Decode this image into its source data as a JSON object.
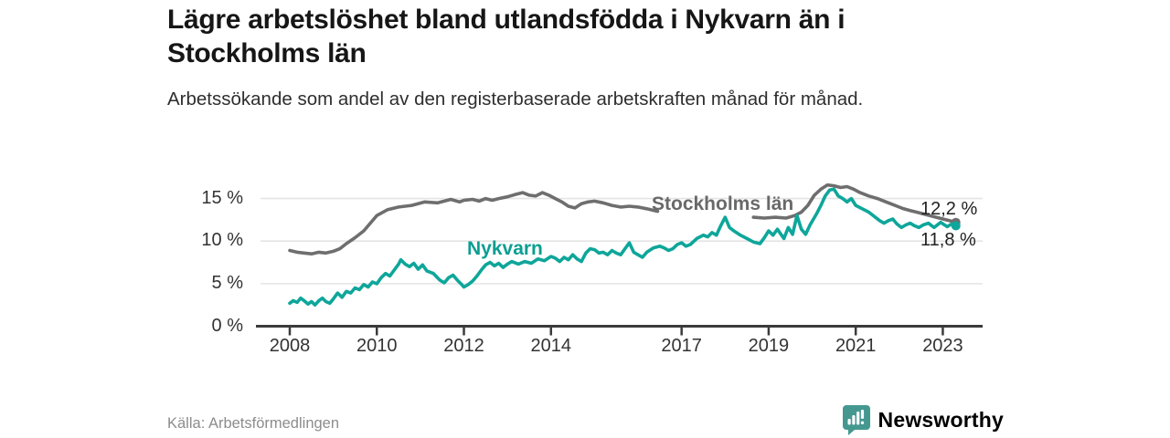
{
  "header": {
    "title": "Lägre arbetslöshet bland utlandsfödda i Nykvarn än i Stockholms län",
    "subtitle": "Arbetssökande som andel av den registerbaserade arbetskraften månad för månad."
  },
  "footer": {
    "source": "Källa: Arbetsförmedlingen",
    "brand": "Newsworthy"
  },
  "colors": {
    "stockholm_line": "#6e6e6e",
    "stockholm_label": "#696969",
    "nykvarn_line": "#0ea69a",
    "nykvarn_label": "#0b9e92",
    "axis": "#3b3b3b",
    "gridline": "#e4e4e4",
    "logo_icon": "#459890",
    "logo_text": "#2f837e"
  },
  "chart_data": {
    "type": "line",
    "title": "Lägre arbetslöshet bland utlandsfödda i Nykvarn än i Stockholms län",
    "subtitle": "Arbetssökande som andel av den registerbaserade arbetskraften månad för månad.",
    "unit": "%",
    "grid": "horizontal-only",
    "legend_position": "inline-labels",
    "x_axis": {
      "ticks": [
        2008,
        2010,
        2012,
        2014,
        2017,
        2019,
        2021,
        2023
      ],
      "range": [
        2007.3,
        2023.9
      ]
    },
    "y_axis": {
      "tick_values": [
        0,
        5,
        10,
        15
      ],
      "tick_labels": [
        "0 %",
        "5 %",
        "10 %",
        "15 %"
      ],
      "range": [
        0,
        17.8
      ]
    },
    "series": [
      {
        "name": "Stockholms län",
        "color": "#6e6e6e",
        "end_label": "12,2 %",
        "end_value": 12.2,
        "segments": [
          [
            [
              2008.0,
              8.9
            ],
            [
              2008.17,
              8.7
            ],
            [
              2008.33,
              8.6
            ],
            [
              2008.5,
              8.5
            ],
            [
              2008.67,
              8.7
            ],
            [
              2008.83,
              8.6
            ],
            [
              2009.0,
              8.8
            ],
            [
              2009.15,
              9.1
            ],
            [
              2009.3,
              9.7
            ],
            [
              2009.5,
              10.4
            ],
            [
              2009.7,
              11.2
            ],
            [
              2009.85,
              12.1
            ],
            [
              2010.0,
              13.0
            ],
            [
              2010.25,
              13.7
            ],
            [
              2010.5,
              14.0
            ],
            [
              2010.8,
              14.2
            ],
            [
              2011.1,
              14.6
            ],
            [
              2011.4,
              14.5
            ],
            [
              2011.7,
              14.9
            ],
            [
              2011.9,
              14.6
            ],
            [
              2012.0,
              14.8
            ],
            [
              2012.2,
              14.9
            ],
            [
              2012.35,
              14.7
            ],
            [
              2012.5,
              15.0
            ],
            [
              2012.65,
              14.8
            ],
            [
              2012.8,
              15.0
            ],
            [
              2013.0,
              15.2
            ],
            [
              2013.2,
              15.5
            ],
            [
              2013.35,
              15.7
            ],
            [
              2013.5,
              15.4
            ],
            [
              2013.65,
              15.3
            ],
            [
              2013.8,
              15.7
            ],
            [
              2013.95,
              15.4
            ],
            [
              2014.1,
              15.0
            ],
            [
              2014.25,
              14.6
            ],
            [
              2014.4,
              14.1
            ],
            [
              2014.55,
              13.9
            ],
            [
              2014.7,
              14.4
            ],
            [
              2014.85,
              14.6
            ],
            [
              2015.0,
              14.7
            ],
            [
              2015.2,
              14.5
            ],
            [
              2015.4,
              14.2
            ],
            [
              2015.6,
              14.0
            ],
            [
              2015.8,
              14.1
            ],
            [
              2016.0,
              14.0
            ],
            [
              2016.2,
              13.8
            ],
            [
              2016.45,
              13.5
            ]
          ],
          [
            [
              2018.65,
              12.8
            ],
            [
              2018.9,
              12.7
            ],
            [
              2019.15,
              12.8
            ],
            [
              2019.4,
              12.7
            ],
            [
              2019.6,
              13.0
            ],
            [
              2019.75,
              13.4
            ],
            [
              2019.9,
              14.2
            ],
            [
              2020.05,
              15.4
            ],
            [
              2020.2,
              16.1
            ],
            [
              2020.35,
              16.6
            ],
            [
              2020.5,
              16.5
            ],
            [
              2020.65,
              16.3
            ],
            [
              2020.8,
              16.4
            ],
            [
              2020.95,
              16.1
            ],
            [
              2021.1,
              15.7
            ],
            [
              2021.3,
              15.3
            ],
            [
              2021.5,
              15.0
            ],
            [
              2021.65,
              14.7
            ],
            [
              2021.8,
              14.4
            ],
            [
              2021.95,
              14.1
            ],
            [
              2022.1,
              13.8
            ],
            [
              2022.25,
              13.6
            ],
            [
              2022.4,
              13.4
            ],
            [
              2022.55,
              13.2
            ],
            [
              2022.7,
              13.0
            ],
            [
              2022.85,
              12.8
            ],
            [
              2023.0,
              12.6
            ],
            [
              2023.15,
              12.4
            ],
            [
              2023.3,
              12.2
            ]
          ]
        ]
      },
      {
        "name": "Nykvarn",
        "color": "#0ea69a",
        "end_label": "11,8 %",
        "end_value": 11.8,
        "segments": [
          [
            [
              2008.0,
              2.7
            ],
            [
              2008.08,
              3.0
            ],
            [
              2008.17,
              2.8
            ],
            [
              2008.25,
              3.3
            ],
            [
              2008.33,
              3.0
            ],
            [
              2008.42,
              2.6
            ],
            [
              2008.5,
              2.9
            ],
            [
              2008.58,
              2.5
            ],
            [
              2008.67,
              3.0
            ],
            [
              2008.75,
              3.3
            ],
            [
              2008.83,
              2.9
            ],
            [
              2008.92,
              2.7
            ],
            [
              2009.0,
              3.2
            ],
            [
              2009.1,
              3.9
            ],
            [
              2009.2,
              3.4
            ],
            [
              2009.3,
              4.1
            ],
            [
              2009.4,
              3.9
            ],
            [
              2009.5,
              4.5
            ],
            [
              2009.6,
              4.3
            ],
            [
              2009.7,
              4.9
            ],
            [
              2009.8,
              4.6
            ],
            [
              2009.9,
              5.2
            ],
            [
              2010.0,
              5.0
            ],
            [
              2010.1,
              5.7
            ],
            [
              2010.2,
              6.2
            ],
            [
              2010.3,
              5.9
            ],
            [
              2010.4,
              6.6
            ],
            [
              2010.5,
              7.3
            ],
            [
              2010.55,
              7.8
            ],
            [
              2010.65,
              7.3
            ],
            [
              2010.75,
              7.0
            ],
            [
              2010.85,
              7.4
            ],
            [
              2010.95,
              6.7
            ],
            [
              2011.05,
              7.2
            ],
            [
              2011.15,
              6.5
            ],
            [
              2011.3,
              6.2
            ],
            [
              2011.45,
              5.4
            ],
            [
              2011.55,
              5.1
            ],
            [
              2011.65,
              5.7
            ],
            [
              2011.75,
              6.0
            ],
            [
              2011.85,
              5.4
            ],
            [
              2011.95,
              4.9
            ],
            [
              2012.0,
              4.6
            ],
            [
              2012.1,
              4.9
            ],
            [
              2012.2,
              5.3
            ],
            [
              2012.3,
              5.9
            ],
            [
              2012.4,
              6.6
            ],
            [
              2012.5,
              7.2
            ],
            [
              2012.6,
              7.5
            ],
            [
              2012.7,
              7.1
            ],
            [
              2012.8,
              7.4
            ],
            [
              2012.9,
              6.9
            ],
            [
              2013.0,
              7.3
            ],
            [
              2013.1,
              7.6
            ],
            [
              2013.25,
              7.3
            ],
            [
              2013.4,
              7.6
            ],
            [
              2013.55,
              7.4
            ],
            [
              2013.7,
              7.9
            ],
            [
              2013.85,
              7.7
            ],
            [
              2014.0,
              8.2
            ],
            [
              2014.1,
              8.0
            ],
            [
              2014.2,
              7.6
            ],
            [
              2014.3,
              8.1
            ],
            [
              2014.4,
              7.8
            ],
            [
              2014.5,
              8.4
            ],
            [
              2014.6,
              7.9
            ],
            [
              2014.7,
              7.6
            ],
            [
              2014.8,
              8.6
            ],
            [
              2014.9,
              9.1
            ],
            [
              2015.0,
              9.0
            ],
            [
              2015.1,
              8.6
            ],
            [
              2015.2,
              8.7
            ],
            [
              2015.3,
              8.4
            ],
            [
              2015.4,
              8.9
            ],
            [
              2015.5,
              8.6
            ],
            [
              2015.6,
              8.4
            ],
            [
              2015.7,
              9.1
            ],
            [
              2015.8,
              9.8
            ],
            [
              2015.9,
              8.7
            ],
            [
              2016.0,
              8.4
            ],
            [
              2016.1,
              8.1
            ],
            [
              2016.2,
              8.7
            ],
            [
              2016.35,
              9.2
            ],
            [
              2016.5,
              9.4
            ],
            [
              2016.6,
              9.2
            ],
            [
              2016.7,
              8.9
            ],
            [
              2016.8,
              9.1
            ],
            [
              2016.9,
              9.6
            ],
            [
              2017.0,
              9.8
            ],
            [
              2017.1,
              9.4
            ],
            [
              2017.2,
              9.6
            ],
            [
              2017.35,
              10.3
            ],
            [
              2017.5,
              10.7
            ],
            [
              2017.6,
              10.5
            ],
            [
              2017.7,
              11.0
            ],
            [
              2017.8,
              10.7
            ],
            [
              2017.9,
              11.8
            ],
            [
              2018.0,
              12.8
            ],
            [
              2018.1,
              11.6
            ],
            [
              2018.2,
              11.2
            ],
            [
              2018.35,
              10.7
            ],
            [
              2018.5,
              10.3
            ],
            [
              2018.65,
              9.9
            ],
            [
              2018.8,
              9.7
            ],
            [
              2018.9,
              10.4
            ],
            [
              2019.0,
              11.2
            ],
            [
              2019.1,
              10.7
            ],
            [
              2019.2,
              11.4
            ],
            [
              2019.35,
              10.3
            ],
            [
              2019.45,
              11.6
            ],
            [
              2019.55,
              10.8
            ],
            [
              2019.65,
              13.0
            ],
            [
              2019.75,
              11.4
            ],
            [
              2019.85,
              10.8
            ],
            [
              2019.95,
              11.9
            ],
            [
              2020.1,
              13.2
            ],
            [
              2020.2,
              14.2
            ],
            [
              2020.3,
              15.3
            ],
            [
              2020.4,
              16.0
            ],
            [
              2020.5,
              16.1
            ],
            [
              2020.6,
              15.3
            ],
            [
              2020.7,
              15.0
            ],
            [
              2020.8,
              14.6
            ],
            [
              2020.9,
              15.0
            ],
            [
              2021.0,
              14.2
            ],
            [
              2021.15,
              13.8
            ],
            [
              2021.3,
              13.4
            ],
            [
              2021.45,
              12.8
            ],
            [
              2021.55,
              12.4
            ],
            [
              2021.65,
              12.1
            ],
            [
              2021.75,
              12.4
            ],
            [
              2021.85,
              12.6
            ],
            [
              2021.95,
              12.0
            ],
            [
              2022.05,
              11.6
            ],
            [
              2022.15,
              11.9
            ],
            [
              2022.25,
              12.1
            ],
            [
              2022.35,
              11.8
            ],
            [
              2022.45,
              11.6
            ],
            [
              2022.55,
              11.9
            ],
            [
              2022.67,
              12.1
            ],
            [
              2022.8,
              11.6
            ],
            [
              2022.95,
              12.2
            ],
            [
              2023.1,
              11.7
            ],
            [
              2023.2,
              12.0
            ],
            [
              2023.3,
              11.8
            ]
          ]
        ]
      }
    ]
  }
}
